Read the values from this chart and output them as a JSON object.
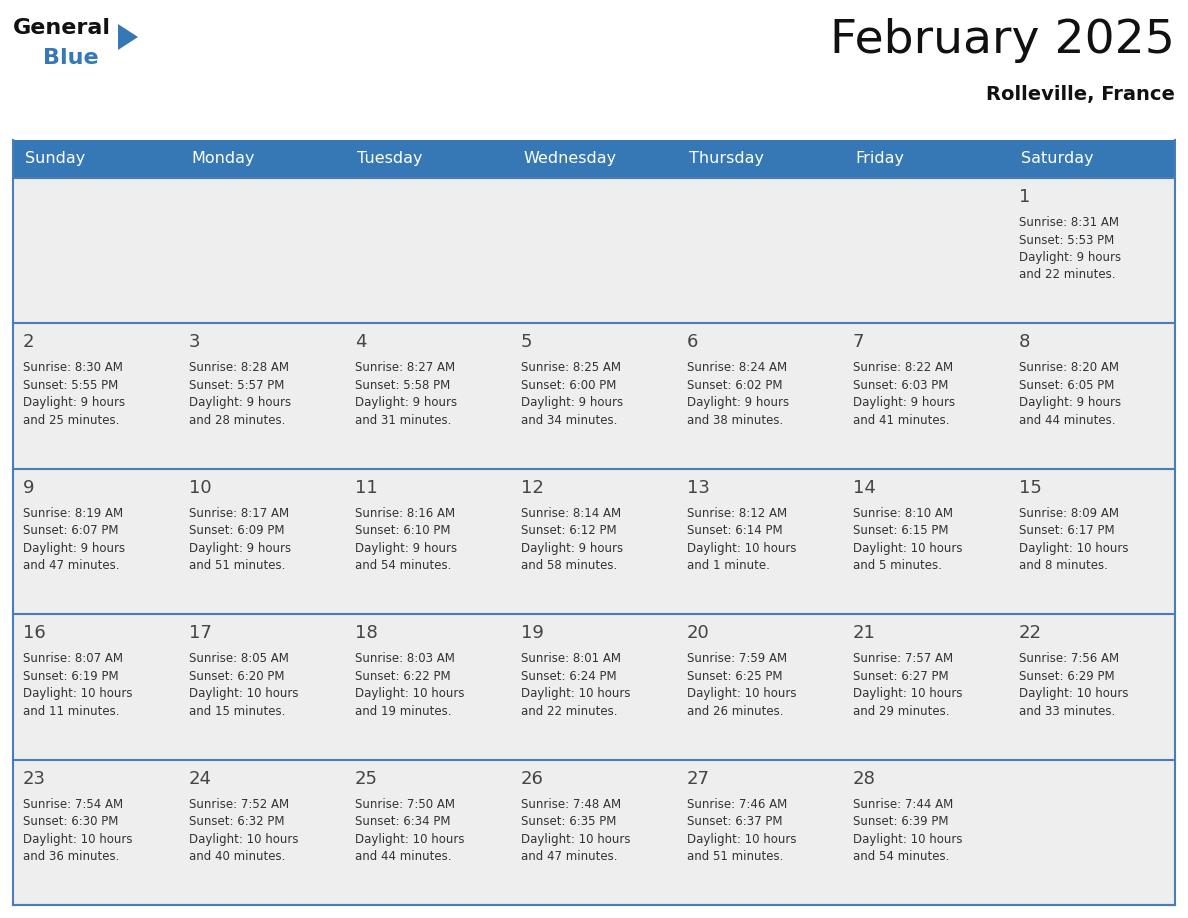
{
  "title": "February 2025",
  "subtitle": "Rolleville, France",
  "header_bg_color": "#3578b5",
  "header_text_color": "#ffffff",
  "day_names": [
    "Sunday",
    "Monday",
    "Tuesday",
    "Wednesday",
    "Thursday",
    "Friday",
    "Saturday"
  ],
  "bg_color": "#ffffff",
  "cell_bg_color": "#eeeeee",
  "date_color": "#444444",
  "text_color": "#333333",
  "line_color": "#4a7db5",
  "logo_general_color": "#111111",
  "logo_blue_color": "#3578b5",
  "logo_triangle_color": "#3578b5",
  "subtitle_color": "#111111",
  "title_color": "#111111",
  "calendar": [
    [
      null,
      null,
      null,
      null,
      null,
      null,
      {
        "day": "1",
        "sunrise": "8:31 AM",
        "sunset": "5:53 PM",
        "daylight": "9 hours\nand 22 minutes."
      }
    ],
    [
      {
        "day": "2",
        "sunrise": "8:30 AM",
        "sunset": "5:55 PM",
        "daylight": "9 hours\nand 25 minutes."
      },
      {
        "day": "3",
        "sunrise": "8:28 AM",
        "sunset": "5:57 PM",
        "daylight": "9 hours\nand 28 minutes."
      },
      {
        "day": "4",
        "sunrise": "8:27 AM",
        "sunset": "5:58 PM",
        "daylight": "9 hours\nand 31 minutes."
      },
      {
        "day": "5",
        "sunrise": "8:25 AM",
        "sunset": "6:00 PM",
        "daylight": "9 hours\nand 34 minutes."
      },
      {
        "day": "6",
        "sunrise": "8:24 AM",
        "sunset": "6:02 PM",
        "daylight": "9 hours\nand 38 minutes."
      },
      {
        "day": "7",
        "sunrise": "8:22 AM",
        "sunset": "6:03 PM",
        "daylight": "9 hours\nand 41 minutes."
      },
      {
        "day": "8",
        "sunrise": "8:20 AM",
        "sunset": "6:05 PM",
        "daylight": "9 hours\nand 44 minutes."
      }
    ],
    [
      {
        "day": "9",
        "sunrise": "8:19 AM",
        "sunset": "6:07 PM",
        "daylight": "9 hours\nand 47 minutes."
      },
      {
        "day": "10",
        "sunrise": "8:17 AM",
        "sunset": "6:09 PM",
        "daylight": "9 hours\nand 51 minutes."
      },
      {
        "day": "11",
        "sunrise": "8:16 AM",
        "sunset": "6:10 PM",
        "daylight": "9 hours\nand 54 minutes."
      },
      {
        "day": "12",
        "sunrise": "8:14 AM",
        "sunset": "6:12 PM",
        "daylight": "9 hours\nand 58 minutes."
      },
      {
        "day": "13",
        "sunrise": "8:12 AM",
        "sunset": "6:14 PM",
        "daylight": "10 hours\nand 1 minute."
      },
      {
        "day": "14",
        "sunrise": "8:10 AM",
        "sunset": "6:15 PM",
        "daylight": "10 hours\nand 5 minutes."
      },
      {
        "day": "15",
        "sunrise": "8:09 AM",
        "sunset": "6:17 PM",
        "daylight": "10 hours\nand 8 minutes."
      }
    ],
    [
      {
        "day": "16",
        "sunrise": "8:07 AM",
        "sunset": "6:19 PM",
        "daylight": "10 hours\nand 11 minutes."
      },
      {
        "day": "17",
        "sunrise": "8:05 AM",
        "sunset": "6:20 PM",
        "daylight": "10 hours\nand 15 minutes."
      },
      {
        "day": "18",
        "sunrise": "8:03 AM",
        "sunset": "6:22 PM",
        "daylight": "10 hours\nand 19 minutes."
      },
      {
        "day": "19",
        "sunrise": "8:01 AM",
        "sunset": "6:24 PM",
        "daylight": "10 hours\nand 22 minutes."
      },
      {
        "day": "20",
        "sunrise": "7:59 AM",
        "sunset": "6:25 PM",
        "daylight": "10 hours\nand 26 minutes."
      },
      {
        "day": "21",
        "sunrise": "7:57 AM",
        "sunset": "6:27 PM",
        "daylight": "10 hours\nand 29 minutes."
      },
      {
        "day": "22",
        "sunrise": "7:56 AM",
        "sunset": "6:29 PM",
        "daylight": "10 hours\nand 33 minutes."
      }
    ],
    [
      {
        "day": "23",
        "sunrise": "7:54 AM",
        "sunset": "6:30 PM",
        "daylight": "10 hours\nand 36 minutes."
      },
      {
        "day": "24",
        "sunrise": "7:52 AM",
        "sunset": "6:32 PM",
        "daylight": "10 hours\nand 40 minutes."
      },
      {
        "day": "25",
        "sunrise": "7:50 AM",
        "sunset": "6:34 PM",
        "daylight": "10 hours\nand 44 minutes."
      },
      {
        "day": "26",
        "sunrise": "7:48 AM",
        "sunset": "6:35 PM",
        "daylight": "10 hours\nand 47 minutes."
      },
      {
        "day": "27",
        "sunrise": "7:46 AM",
        "sunset": "6:37 PM",
        "daylight": "10 hours\nand 51 minutes."
      },
      {
        "day": "28",
        "sunrise": "7:44 AM",
        "sunset": "6:39 PM",
        "daylight": "10 hours\nand 54 minutes."
      },
      null
    ]
  ]
}
